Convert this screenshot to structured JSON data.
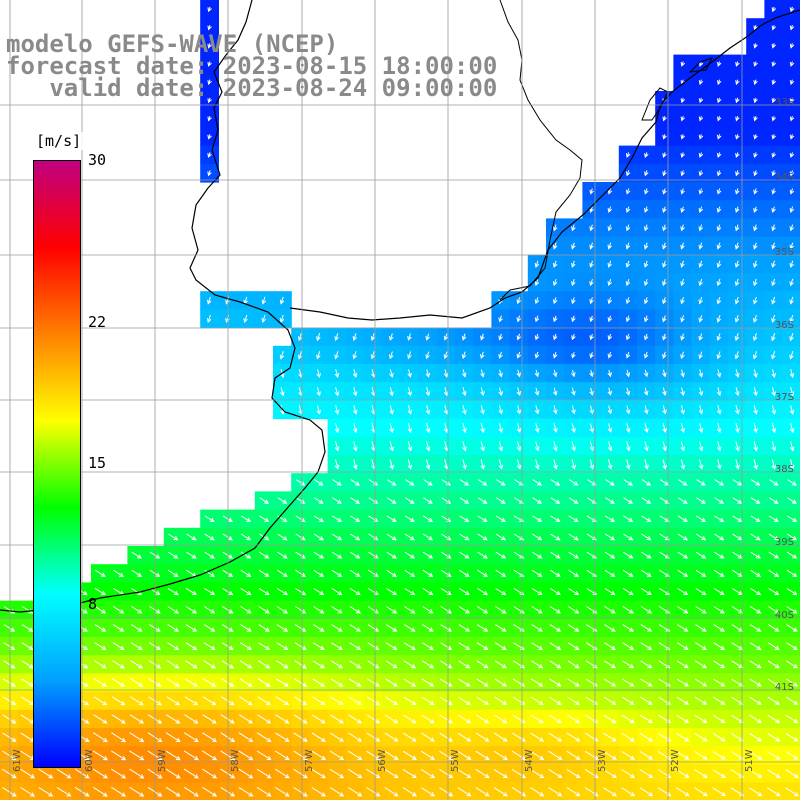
{
  "title": {
    "model": "modelo GEFS-WAVE (NCEP)",
    "forecast": "forecast date: 2023-08-15 18:00:00",
    "valid": "   valid date: 2023-08-24 09:00:00"
  },
  "colorbar": {
    "unit": "[m/s]",
    "min": 0,
    "max": 30,
    "ticks": [
      {
        "value": 30,
        "label": "30"
      },
      {
        "value": 22,
        "label": "22"
      },
      {
        "value": 15,
        "label": "15"
      },
      {
        "value": 8,
        "label": "8"
      }
    ],
    "stops": [
      "#0000ff",
      "#00a0ff",
      "#00ffff",
      "#00ff00",
      "#ffff00",
      "#ff8000",
      "#ff0000",
      "#c00080"
    ]
  },
  "grid": {
    "lat_labels": [
      "33S",
      "34S",
      "35S",
      "36S",
      "37S",
      "38S",
      "39S",
      "40S",
      "41S"
    ],
    "lon_labels": [
      "61W",
      "60W",
      "59W",
      "58W",
      "57W",
      "56W",
      "55W",
      "54W",
      "53W",
      "52W",
      "51W"
    ]
  },
  "colors": {
    "land": "#ffffff",
    "coast": "#000000",
    "grid": "#9a9a9a",
    "arrow": "#ffffff"
  }
}
